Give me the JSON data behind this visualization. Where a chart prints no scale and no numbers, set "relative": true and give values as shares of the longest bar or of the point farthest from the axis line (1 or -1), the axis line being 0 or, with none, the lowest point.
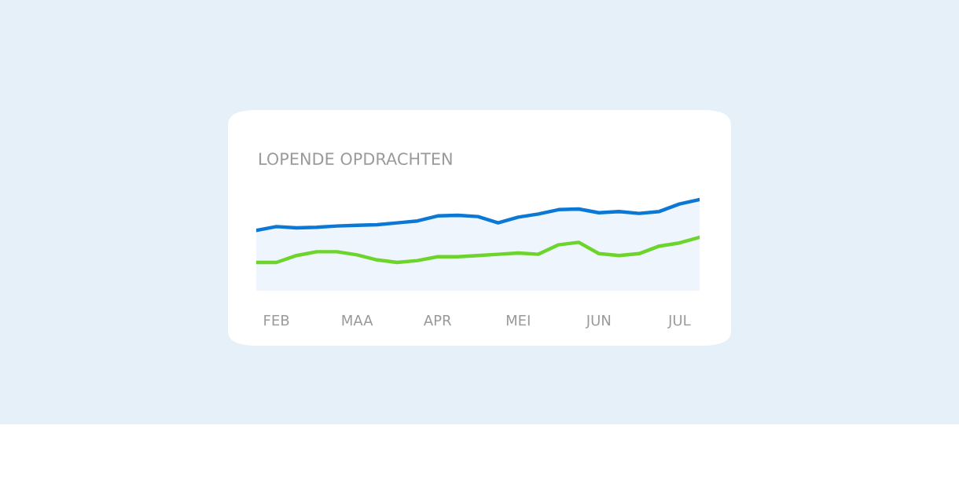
{
  "chart_data": {
    "type": "line",
    "title": "LOPENDE OPDRACHTEN",
    "relative": true,
    "categories": [
      null,
      "FEB",
      null,
      null,
      null,
      "MAA",
      null,
      null,
      null,
      "APR",
      null,
      null,
      null,
      "MEI",
      null,
      null,
      null,
      "JUN",
      null,
      null,
      null,
      "JUL",
      null
    ],
    "grid": false,
    "legend": false,
    "marker": "none",
    "line_style": "solid",
    "series": [
      {
        "type": "area",
        "color": "#0a78d4",
        "values": [
          0.51,
          0.57,
          0.55,
          0.56,
          0.58,
          0.59,
          0.6,
          0.63,
          0.66,
          0.74,
          0.75,
          0.73,
          0.63,
          0.72,
          0.77,
          0.84,
          0.85,
          0.79,
          0.81,
          0.78,
          0.81,
          0.93,
          1
        ]
      },
      {
        "color": "#6cd42a",
        "values": [
          0,
          0,
          0.11,
          0.17,
          0.17,
          0.12,
          0.04,
          0,
          0.03,
          0.09,
          0.09,
          0.11,
          0.13,
          0.15,
          0.13,
          0.28,
          0.32,
          0.14,
          0.11,
          0.14,
          0.26,
          0.31,
          0.4
        ]
      }
    ]
  }
}
